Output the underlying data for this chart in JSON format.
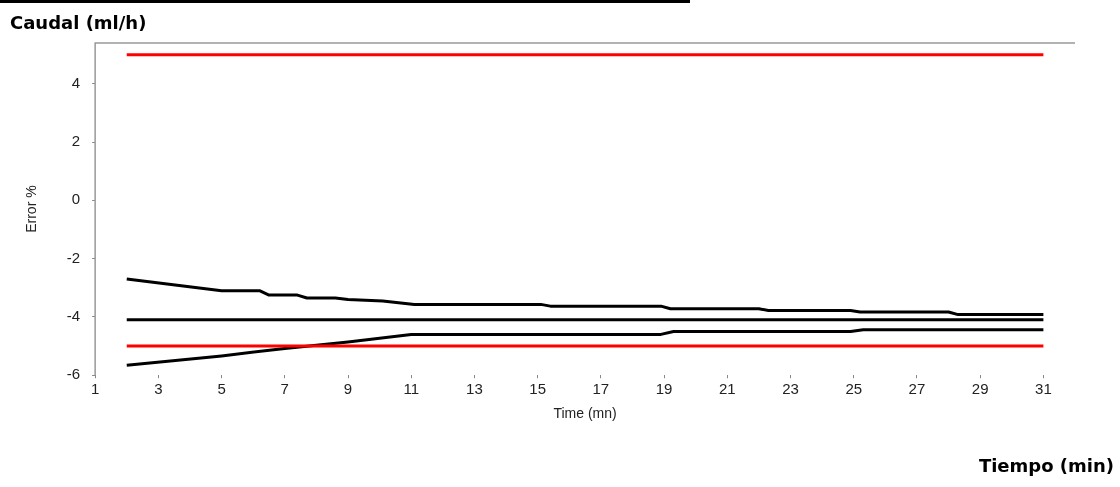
{
  "chart_data": {
    "type": "line",
    "xlabel": "Time (mn)",
    "ylabel": "Error %",
    "annotations": [
      "Caudal (ml/h)",
      "Tiempo (min)"
    ],
    "xlim": [
      1,
      32
    ],
    "xticks": [
      1,
      3,
      5,
      7,
      9,
      11,
      13,
      15,
      17,
      19,
      21,
      23,
      25,
      27,
      29,
      31
    ],
    "ylim": [
      -6,
      5.4
    ],
    "yticks": [
      4,
      2,
      0,
      -2,
      -4,
      -6
    ],
    "grid": false,
    "legend": false,
    "marker": "none",
    "line_style": "solid",
    "series": [
      {
        "color": "#ff0000",
        "x": [
          2,
          31
        ],
        "values": [
          5,
          5
        ]
      },
      {
        "color": "#ff0000",
        "x": [
          2,
          31
        ],
        "values": [
          -5,
          -5
        ]
      },
      {
        "color": "#000000",
        "x": [
          2,
          31
        ],
        "values": [
          -4.1,
          -4.1
        ]
      },
      {
        "color": "#000000",
        "x": [
          2,
          5,
          6.2,
          6.5,
          7.4,
          7.7,
          8.6,
          9,
          10.1,
          11.1,
          15.1,
          15.4,
          18.9,
          19.2,
          22,
          22.3,
          24.9,
          25.2,
          28,
          28.3,
          31
        ],
        "values": [
          -2.7,
          -3.1,
          -3.1,
          -3.25,
          -3.25,
          -3.35,
          -3.35,
          -3.4,
          -3.45,
          -3.57,
          -3.57,
          -3.63,
          -3.63,
          -3.72,
          -3.72,
          -3.78,
          -3.78,
          -3.83,
          -3.83,
          -3.92,
          -3.92
        ]
      },
      {
        "color": "#000000",
        "x": [
          2,
          5,
          7,
          9,
          11,
          18.9,
          19.3,
          24.9,
          25.3,
          31
        ],
        "values": [
          -5.66,
          -5.34,
          -5.08,
          -4.86,
          -4.6,
          -4.6,
          -4.5,
          -4.5,
          -4.44,
          -4.44
        ]
      }
    ]
  }
}
